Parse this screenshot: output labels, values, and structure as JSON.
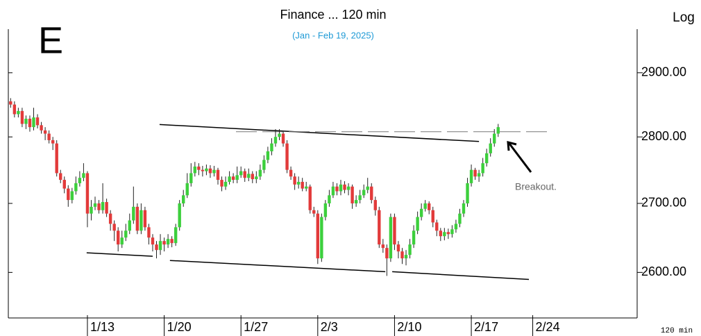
{
  "chart_data": {
    "type": "candlestick",
    "title": "Finance ... 120 min",
    "subtitle": "(Jan - Feb 19, 2025)",
    "panel_letter": "E",
    "scale_label": "Log",
    "interval_label": "120 min",
    "log_scale": true,
    "up_color": "#3ccf3c",
    "down_color": "#e23a3a",
    "xlim": [
      -0.6,
      163.2
    ],
    "xticks": [
      {
        "value": 20,
        "label": "1/13"
      },
      {
        "value": 40,
        "label": "1/20"
      },
      {
        "value": 60,
        "label": "1/27"
      },
      {
        "value": 80,
        "label": "2/3"
      },
      {
        "value": 100,
        "label": "2/10"
      },
      {
        "value": 120,
        "label": "2/17"
      },
      {
        "value": 136,
        "label": "2/24"
      }
    ],
    "ylim": [
      2536,
      2970
    ],
    "yticks": [
      {
        "value": 2600,
        "label": "2600.00"
      },
      {
        "value": 2700,
        "label": "2700.00"
      },
      {
        "value": 2800,
        "label": "2800.00"
      },
      {
        "value": 2900,
        "label": "2900.00"
      }
    ],
    "x": [
      0,
      1,
      2,
      3,
      4,
      5,
      6,
      7,
      8,
      9,
      10,
      11,
      12,
      13,
      14,
      15,
      16,
      17,
      18,
      19,
      20,
      21,
      22,
      23,
      24,
      25,
      26,
      27,
      28,
      29,
      30,
      31,
      32,
      33,
      34,
      35,
      36,
      37,
      38,
      39,
      40,
      41,
      42,
      43,
      44,
      45,
      46,
      47,
      48,
      49,
      50,
      51,
      52,
      53,
      54,
      55,
      56,
      57,
      58,
      59,
      60,
      61,
      62,
      63,
      64,
      65,
      66,
      67,
      68,
      69,
      70,
      71,
      72,
      73,
      74,
      75,
      76,
      77,
      78,
      79,
      80,
      81,
      82,
      83,
      84,
      85,
      86,
      87,
      88,
      89,
      90,
      91,
      92,
      93,
      94,
      95,
      96,
      97,
      98,
      99,
      100,
      101,
      102,
      103,
      104,
      105,
      106,
      107,
      108,
      109,
      110,
      111,
      112,
      113,
      114,
      115,
      116,
      117,
      118,
      119,
      120,
      121,
      122,
      123,
      124,
      125,
      126,
      127
    ],
    "open": [
      2855,
      2850,
      2835,
      2840,
      2820,
      2828,
      2815,
      2830,
      2818,
      2810,
      2805,
      2795,
      2790,
      2745,
      2735,
      2722,
      2705,
      2718,
      2730,
      2738,
      2745,
      2685,
      2695,
      2700,
      2690,
      2702,
      2685,
      2670,
      2660,
      2640,
      2650,
      2660,
      2675,
      2695,
      2660,
      2690,
      2665,
      2650,
      2640,
      2632,
      2645,
      2640,
      2648,
      2642,
      2665,
      2700,
      2712,
      2730,
      2745,
      2755,
      2750,
      2748,
      2752,
      2745,
      2750,
      2735,
      2725,
      2732,
      2740,
      2735,
      2742,
      2748,
      2738,
      2744,
      2736,
      2740,
      2750,
      2765,
      2778,
      2790,
      2800,
      2805,
      2790,
      2750,
      2740,
      2728,
      2732,
      2722,
      2725,
      2690,
      2685,
      2620,
      2680,
      2700,
      2712,
      2725,
      2718,
      2728,
      2720,
      2725,
      2700,
      2705,
      2712,
      2720,
      2725,
      2705,
      2690,
      2640,
      2635,
      2620,
      2680,
      2640,
      2630,
      2620,
      2625,
      2640,
      2660,
      2680,
      2692,
      2700,
      2690,
      2672,
      2660,
      2652,
      2658,
      2655,
      2662,
      2670,
      2685,
      2700,
      2730,
      2750,
      2740,
      2745,
      2760,
      2775,
      2790,
      2805
    ],
    "high": [
      2860,
      2855,
      2845,
      2845,
      2833,
      2833,
      2845,
      2835,
      2823,
      2815,
      2810,
      2800,
      2795,
      2750,
      2740,
      2727,
      2723,
      2740,
      2748,
      2760,
      2748,
      2705,
      2710,
      2705,
      2730,
      2707,
      2690,
      2675,
      2665,
      2660,
      2670,
      2685,
      2725,
      2700,
      2700,
      2695,
      2670,
      2655,
      2645,
      2655,
      2650,
      2655,
      2652,
      2670,
      2705,
      2720,
      2745,
      2760,
      2762,
      2760,
      2756,
      2758,
      2757,
      2756,
      2753,
      2740,
      2740,
      2748,
      2745,
      2755,
      2755,
      2752,
      2752,
      2748,
      2748,
      2758,
      2772,
      2785,
      2798,
      2812,
      2812,
      2808,
      2795,
      2755,
      2745,
      2740,
      2738,
      2732,
      2728,
      2695,
      2690,
      2685,
      2705,
      2720,
      2732,
      2730,
      2735,
      2733,
      2730,
      2728,
      2712,
      2720,
      2728,
      2738,
      2730,
      2710,
      2695,
      2648,
      2640,
      2685,
      2685,
      2645,
      2635,
      2632,
      2648,
      2668,
      2688,
      2700,
      2705,
      2703,
      2695,
      2676,
      2664,
      2664,
      2663,
      2668,
      2676,
      2692,
      2705,
      2738,
      2758,
      2753,
      2750,
      2768,
      2782,
      2798,
      2812,
      2820
    ],
    "low": [
      2845,
      2830,
      2830,
      2815,
      2812,
      2808,
      2810,
      2813,
      2805,
      2795,
      2790,
      2780,
      2740,
      2730,
      2715,
      2695,
      2700,
      2713,
      2725,
      2733,
      2665,
      2675,
      2690,
      2685,
      2685,
      2680,
      2660,
      2645,
      2630,
      2635,
      2645,
      2655,
      2670,
      2655,
      2655,
      2660,
      2640,
      2630,
      2620,
      2625,
      2630,
      2635,
      2636,
      2638,
      2660,
      2695,
      2708,
      2725,
      2740,
      2742,
      2740,
      2742,
      2738,
      2740,
      2728,
      2718,
      2720,
      2728,
      2730,
      2730,
      2738,
      2732,
      2733,
      2730,
      2730,
      2735,
      2745,
      2760,
      2772,
      2785,
      2795,
      2785,
      2745,
      2735,
      2720,
      2722,
      2718,
      2718,
      2685,
      2680,
      2612,
      2615,
      2675,
      2695,
      2708,
      2712,
      2712,
      2715,
      2712,
      2692,
      2695,
      2700,
      2708,
      2715,
      2700,
      2682,
      2635,
      2628,
      2595,
      2615,
      2632,
      2620,
      2612,
      2610,
      2620,
      2635,
      2655,
      2675,
      2688,
      2684,
      2665,
      2652,
      2645,
      2646,
      2648,
      2650,
      2657,
      2665,
      2680,
      2695,
      2725,
      2735,
      2732,
      2740,
      2755,
      2770,
      2785,
      2800
    ],
    "close": [
      2850,
      2835,
      2840,
      2820,
      2828,
      2815,
      2830,
      2818,
      2810,
      2805,
      2795,
      2790,
      2745,
      2735,
      2722,
      2705,
      2718,
      2730,
      2738,
      2745,
      2685,
      2695,
      2700,
      2690,
      2702,
      2685,
      2670,
      2660,
      2640,
      2650,
      2660,
      2675,
      2695,
      2660,
      2690,
      2665,
      2650,
      2640,
      2632,
      2645,
      2640,
      2648,
      2642,
      2665,
      2700,
      2712,
      2730,
      2745,
      2755,
      2750,
      2748,
      2752,
      2745,
      2750,
      2735,
      2725,
      2732,
      2740,
      2735,
      2742,
      2748,
      2738,
      2744,
      2736,
      2740,
      2750,
      2765,
      2778,
      2790,
      2800,
      2805,
      2790,
      2750,
      2740,
      2728,
      2732,
      2722,
      2725,
      2690,
      2685,
      2620,
      2680,
      2700,
      2712,
      2725,
      2718,
      2728,
      2720,
      2725,
      2700,
      2705,
      2712,
      2720,
      2725,
      2705,
      2690,
      2640,
      2635,
      2620,
      2680,
      2640,
      2630,
      2620,
      2625,
      2640,
      2660,
      2680,
      2692,
      2700,
      2690,
      2672,
      2660,
      2652,
      2658,
      2655,
      2662,
      2670,
      2685,
      2700,
      2730,
      2750,
      2740,
      2745,
      2760,
      2775,
      2790,
      2805,
      2815
    ],
    "trendlines": [
      {
        "x": [
          38.8,
          122
        ],
        "y": [
          2819,
          2793
        ],
        "dashed": false
      },
      {
        "x": [
          19.8,
          37
        ],
        "y": [
          2628,
          2623
        ],
        "dashed": false
      },
      {
        "x": [
          41.5,
          97.6
        ],
        "y": [
          2617,
          2601
        ],
        "dashed": false
      },
      {
        "x": [
          99.4,
          135
        ],
        "y": [
          2601,
          2590
        ],
        "dashed": false
      },
      {
        "x": [
          58.7,
          140.5
        ],
        "y": [
          2808,
          2808
        ],
        "dashed": true
      }
    ],
    "annotation": "Breakout."
  }
}
